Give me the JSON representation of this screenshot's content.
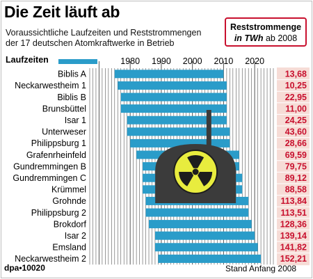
{
  "title": "Die Zeit läuft ab",
  "subtitle_line1": "Voraussichtliche Laufzeiten und Reststrommengen",
  "subtitle_line2": "der 17 deutschen Atomkraftwerke in Betrieb",
  "legend_label": "Laufzeiten",
  "reststrom_box": {
    "line1": "Reststrommenge",
    "line2_italic": "in TWh",
    "line2_rest": " ab 2008"
  },
  "footer_left": "dpa•10020",
  "footer_right": "Stand Anfang 2008",
  "icon": "radiation-icon",
  "colors": {
    "bar": "#2a9cc9",
    "value_bg": "#f6dcd6",
    "value_text": "#c8102e",
    "accent": "#c8102e"
  },
  "chart_data": {
    "type": "bar",
    "orientation": "horizontal",
    "x_ticks": [
      "1980",
      "1990",
      "2000",
      "2010",
      "2020"
    ],
    "xlim": [
      1967,
      2026
    ],
    "value_unit": "TWh",
    "series": [
      {
        "name": "Laufzeiten",
        "start": [
          1975,
          1976,
          1977,
          1977,
          1979,
          1979,
          1980,
          1982,
          1984,
          1984,
          1984,
          1985,
          1985,
          1986,
          1988,
          1988,
          1989
        ],
        "end": [
          2010,
          2011,
          2011,
          2011,
          2011,
          2012,
          2012,
          2015,
          2015,
          2016,
          2016,
          2018,
          2018,
          2019,
          2020,
          2021,
          2022
        ]
      },
      {
        "name": "Reststrommenge",
        "values": [
          13.68,
          10.25,
          22.95,
          11.0,
          24.25,
          43.6,
          28.66,
          69.59,
          79.75,
          89.12,
          88.58,
          113.84,
          113.51,
          128.36,
          139.14,
          141.82,
          152.21
        ]
      }
    ],
    "categories": [
      "Biblis A",
      "Neckarwestheim 1",
      "Biblis B",
      "Brunsbüttel",
      "Isar 1",
      "Unterweser",
      "Philippsburg 1",
      "Grafenrheinfeld",
      "Gundremmingen B",
      "Gundremmingen C",
      "Krümmel",
      "Grohnde",
      "Philippsburg 2",
      "Brokdorf",
      "Isar 2",
      "Emsland",
      "Neckarwestheim 2"
    ],
    "value_labels": [
      "13,68",
      "10,25",
      "22,95",
      "11,00",
      "24,25",
      "43,60",
      "28,66",
      "69,59",
      "79,75",
      "89,12",
      "88,58",
      "113,84",
      "113,51",
      "128,36",
      "139,14",
      "141,82",
      "152,21"
    ]
  }
}
